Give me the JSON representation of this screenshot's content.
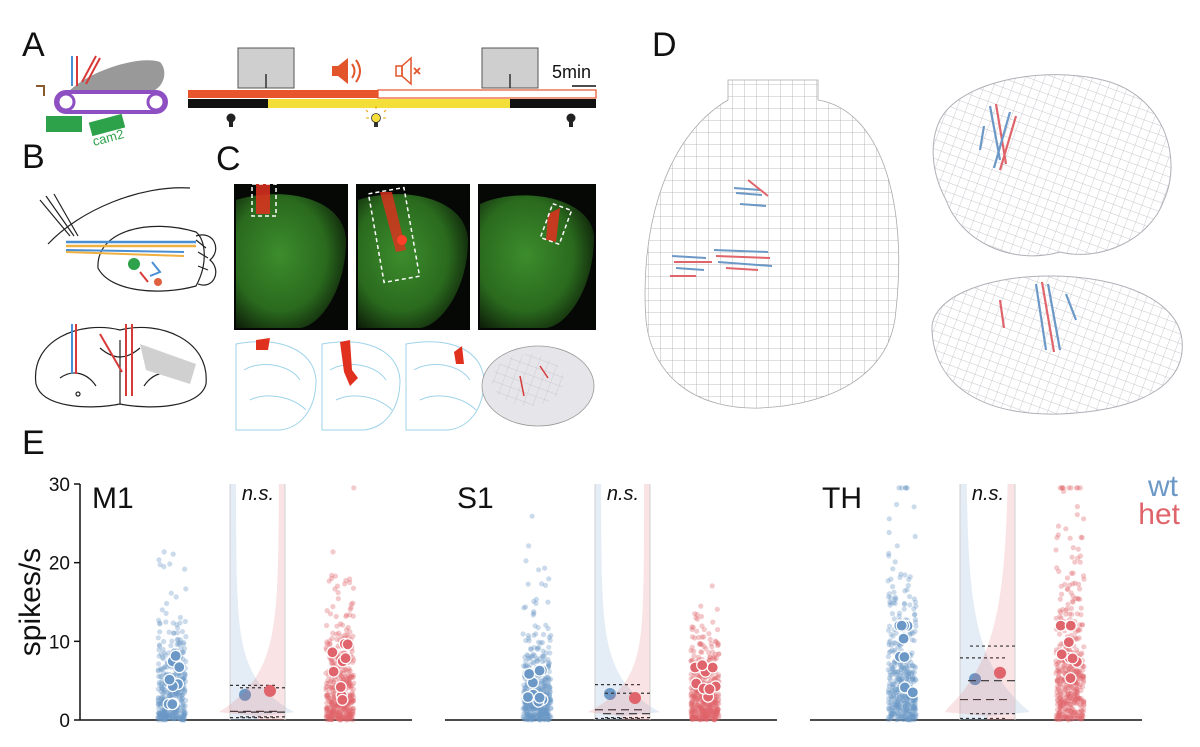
{
  "panels": {
    "a": "A",
    "b": "B",
    "c": "C",
    "d": "D",
    "e": "E"
  },
  "panel_a": {
    "cam_label": "cam2",
    "scale_label": "5min"
  },
  "chart_data": {
    "type": "scatter",
    "ylabel": "spikes/s",
    "ylim": [
      0,
      30
    ],
    "yticks": [
      0,
      10,
      20,
      30
    ],
    "legend": [
      {
        "name": "wt",
        "color": "#6b98c6"
      },
      {
        "name": "het",
        "color": "#e0646b"
      }
    ],
    "legend_position": "top-right",
    "subplots": [
      {
        "region": "M1",
        "annotation": "n.s.",
        "wt": {
          "median": 3.2,
          "quartiles": [
            0.3,
            1.1,
            4.4
          ]
        },
        "het": {
          "median": 3.7,
          "quartiles": [
            0.4,
            1.0,
            4.1
          ]
        }
      },
      {
        "region": "S1",
        "annotation": "n.s.",
        "wt": {
          "median": 3.3,
          "quartiles": [
            0.2,
            1.3,
            4.5
          ]
        },
        "het": {
          "median": 2.8,
          "quartiles": [
            0.3,
            0.8,
            3.4
          ]
        }
      },
      {
        "region": "TH",
        "annotation": "n.s.",
        "wt": {
          "median": 5.2,
          "quartiles": [
            0.2,
            2.6,
            7.9
          ]
        },
        "het": {
          "median": 6.0,
          "quartiles": [
            0.8,
            5.0,
            9.4
          ]
        }
      }
    ]
  }
}
